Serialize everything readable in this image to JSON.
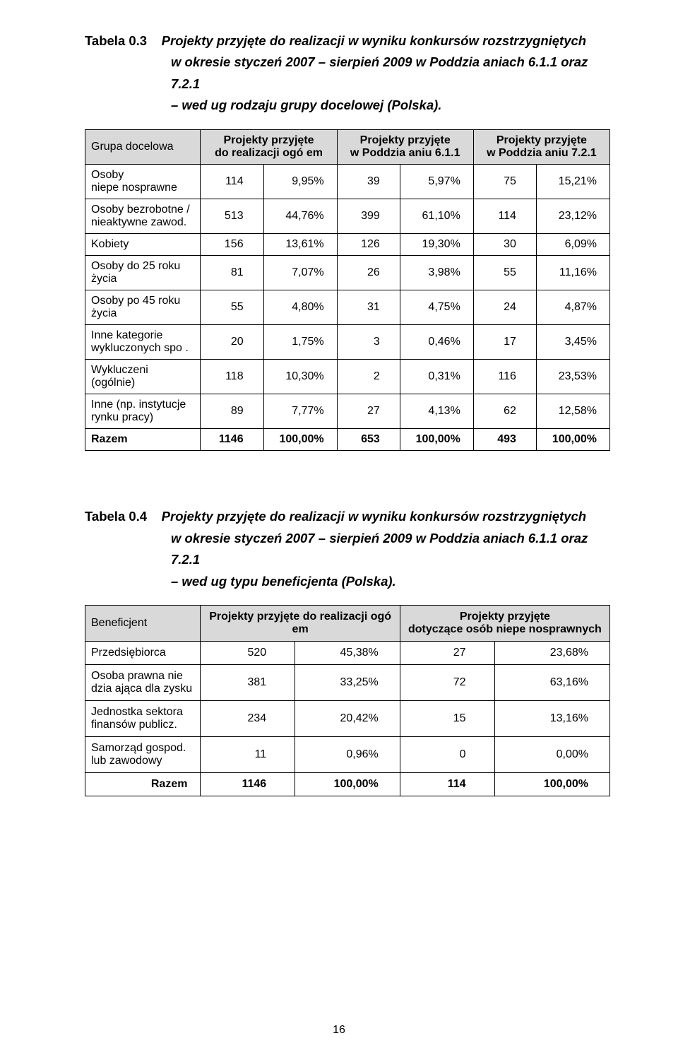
{
  "caption1": {
    "label": "Tabela 0.3",
    "line1": "Projekty przyjęte do realizacji w wyniku konkursów rozstrzygniętych",
    "line2": "w okresie styczeń 2007 – sierpień 2009 w Poddzia aniach 6.1.1 oraz 7.2.1",
    "line3": "– wed ug rodzaju grupy docelowej (Polska)."
  },
  "table1": {
    "headers": {
      "h0": "Grupa docelowa",
      "h1a": "Projekty przyjęte",
      "h1b": "do realizacji ogó em",
      "h2a": "Projekty przyjęte",
      "h2b": "w Poddzia aniu 6.1.1",
      "h3a": "Projekty przyjęte",
      "h3b": "w Poddzia aniu 7.2.1"
    },
    "rows": [
      {
        "label": "Osoby\nniepe nosprawne",
        "v": [
          "114",
          "9,95%",
          "39",
          "5,97%",
          "75",
          "15,21%"
        ]
      },
      {
        "label": "Osoby bezrobotne /\nnieaktywne zawod.",
        "v": [
          "513",
          "44,76%",
          "399",
          "61,10%",
          "114",
          "23,12%"
        ]
      },
      {
        "label": "Kobiety",
        "v": [
          "156",
          "13,61%",
          "126",
          "19,30%",
          "30",
          "6,09%"
        ]
      },
      {
        "label": "Osoby do 25 roku\nżycia",
        "v": [
          "81",
          "7,07%",
          "26",
          "3,98%",
          "55",
          "11,16%"
        ]
      },
      {
        "label": "Osoby po 45 roku\nżycia",
        "v": [
          "55",
          "4,80%",
          "31",
          "4,75%",
          "24",
          "4,87%"
        ]
      },
      {
        "label": "Inne kategorie\nwykluczonych spo .",
        "v": [
          "20",
          "1,75%",
          "3",
          "0,46%",
          "17",
          "3,45%"
        ]
      },
      {
        "label": "Wykluczeni (ogólnie)",
        "v": [
          "118",
          "10,30%",
          "2",
          "0,31%",
          "116",
          "23,53%"
        ]
      },
      {
        "label": "Inne (np. instytucje\nrynku pracy)",
        "v": [
          "89",
          "7,77%",
          "27",
          "4,13%",
          "62",
          "12,58%"
        ]
      }
    ],
    "total": {
      "label": "Razem",
      "v": [
        "1146",
        "100,00%",
        "653",
        "100,00%",
        "493",
        "100,00%"
      ]
    }
  },
  "caption2": {
    "label": "Tabela 0.4",
    "line1": "Projekty przyjęte do realizacji w wyniku konkursów rozstrzygniętych",
    "line2": "w okresie styczeń 2007 – sierpień 2009 w Poddzia aniach 6.1.1 oraz 7.2.1",
    "line3": "– wed ug typu beneficjenta (Polska)."
  },
  "table2": {
    "headers": {
      "h0": "Beneficjent",
      "h1": "Projekty przyjęte do realizacji ogó em",
      "h2a": "Projekty przyjęte",
      "h2b": "dotyczące osób niepe nosprawnych"
    },
    "rows": [
      {
        "label": "Przedsiębiorca",
        "v": [
          "520",
          "45,38%",
          "27",
          "23,68%"
        ]
      },
      {
        "label": "Osoba prawna nie\ndzia ająca dla zysku",
        "v": [
          "381",
          "33,25%",
          "72",
          "63,16%"
        ]
      },
      {
        "label": "Jednostka sektora\nfinansów publicz.",
        "v": [
          "234",
          "20,42%",
          "15",
          "13,16%"
        ]
      },
      {
        "label": "Samorząd gospod.\nlub zawodowy",
        "v": [
          "11",
          "0,96%",
          "0",
          "0,00%"
        ]
      }
    ],
    "total": {
      "label": "Razem",
      "v": [
        "1146",
        "100,00%",
        "114",
        "100,00%"
      ]
    }
  },
  "page_number": "16"
}
